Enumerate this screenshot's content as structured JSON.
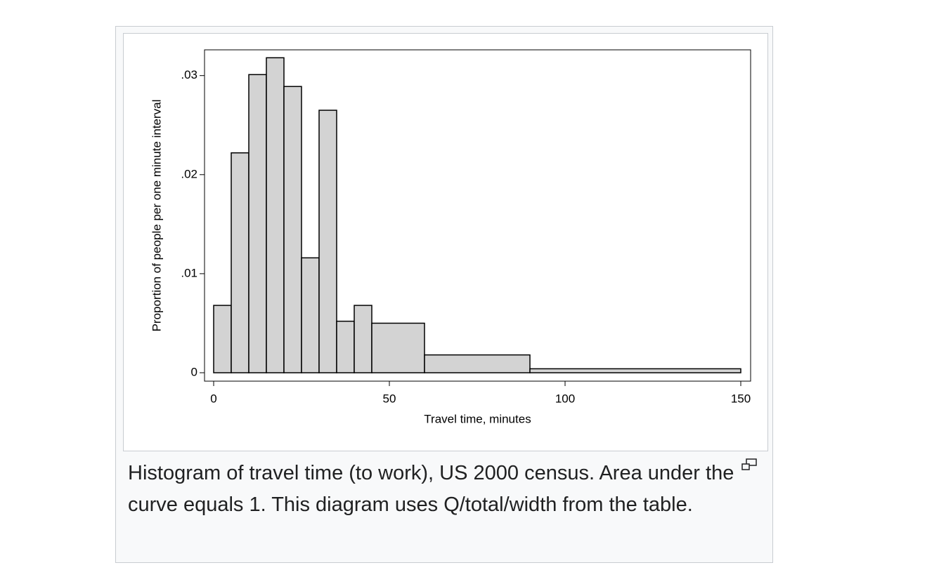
{
  "chart_data": {
    "type": "histogram",
    "x_label": "Travel time, minutes",
    "y_label": "Proportion of people per one minute interval",
    "bins": [
      0,
      5,
      10,
      15,
      20,
      25,
      30,
      35,
      40,
      45,
      60,
      90,
      150
    ],
    "values": [
      0.0068,
      0.0222,
      0.0301,
      0.0318,
      0.0289,
      0.0116,
      0.0265,
      0.0052,
      0.0068,
      0.005,
      0.0018,
      0.0004
    ],
    "color": "#d3d3d3",
    "xlim": [
      -2.6,
      152.8
    ],
    "xticks": [
      0,
      50,
      100,
      150
    ],
    "ylim": [
      -0.00085,
      0.0326
    ],
    "yticks": [
      0,
      {
        "value": 0.01,
        "label": ".01"
      },
      {
        "value": 0.02,
        "label": ".02"
      },
      {
        "value": 0.03,
        "label": ".03"
      }
    ],
    "grid": false
  },
  "caption": "Histogram of travel time (to work), US 2000 census. Area under the curve equals 1. This diagram uses Q/total/width from the table."
}
